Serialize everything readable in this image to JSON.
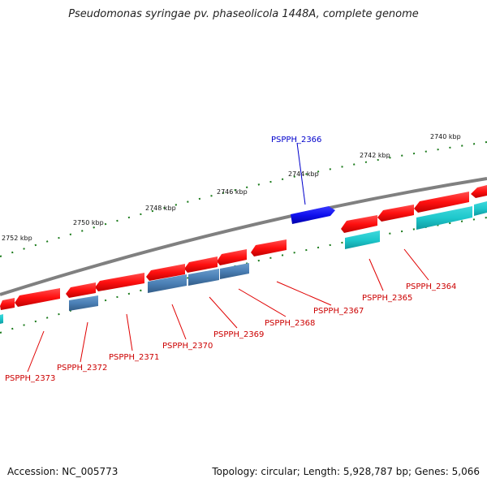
{
  "title": "Pseudomonas syringae pv. phaseolicola 1448A, complete genome",
  "footer": {
    "accession": "Accession: NC_005773",
    "topology": "Topology: circular; Length: 5,928,787 bp; Genes: 5,066"
  },
  "scale_labels": [
    "2740 kbp",
    "2742 kbp",
    "2744 kbp",
    "2746 kbp",
    "2748 kbp",
    "2750 kbp",
    "2752 kbp"
  ],
  "gene_labels": {
    "top": [
      "PSPPH_2366"
    ],
    "bottom": [
      "PSPPH_2364",
      "PSPPH_2365",
      "PSPPH_2367",
      "PSPPH_2368",
      "PSPPH_2369",
      "PSPPH_2370",
      "PSPPH_2371",
      "PSPPH_2372",
      "PSPPH_2373"
    ]
  },
  "colors": {
    "backbone": "#808080",
    "scale_tick": "#1a7a1a",
    "gene_forward_label": "#0000cc",
    "gene_reverse_label": "#cc0000",
    "cds_reverse": "#ff1a1a",
    "cds_forward": "#1010ee",
    "rna_cyan": "#1ec8cc",
    "rna_steel": "#4a7fb5"
  }
}
